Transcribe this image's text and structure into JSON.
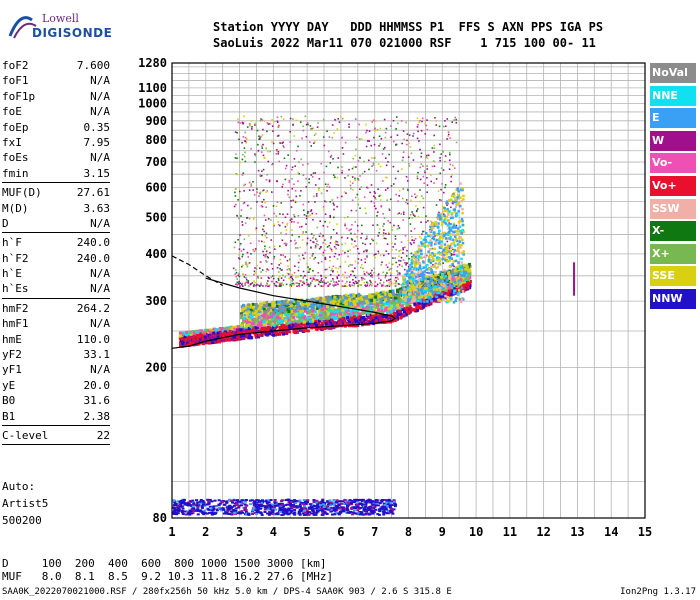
{
  "logo": {
    "line1": "Lowell",
    "line2": "DIGISONDE"
  },
  "header": {
    "line1": "Station YYYY DAY   DDD HHMMSS P1  FFS S AXN PPS IGA PS",
    "line2": "SaoLuis 2022 Mar11 070 021000 RSF    1 715 100 00- 11"
  },
  "params": [
    {
      "k": "foF2",
      "v": "7.600"
    },
    {
      "k": "foF1",
      "v": "N/A"
    },
    {
      "k": "foF1p",
      "v": "N/A"
    },
    {
      "k": "foE",
      "v": "N/A"
    },
    {
      "k": "foEp",
      "v": "0.35"
    },
    {
      "k": "fxI",
      "v": "7.95"
    },
    {
      "k": "foEs",
      "v": "N/A"
    },
    {
      "k": "fmin",
      "v": "3.15"
    },
    {
      "sep": true
    },
    {
      "k": "MUF(D)",
      "v": "27.61"
    },
    {
      "k": "M(D)",
      "v": "3.63"
    },
    {
      "k": "D",
      "v": "N/A"
    },
    {
      "sep": true
    },
    {
      "k": "h`F",
      "v": "240.0"
    },
    {
      "k": "h`F2",
      "v": "240.0"
    },
    {
      "k": "h`E",
      "v": "N/A"
    },
    {
      "k": "h`Es",
      "v": "N/A"
    },
    {
      "sep": true
    },
    {
      "k": "hmF2",
      "v": "264.2"
    },
    {
      "k": "hmF1",
      "v": "N/A"
    },
    {
      "k": "hmE",
      "v": "110.0"
    },
    {
      "k": "yF2",
      "v": "33.1"
    },
    {
      "k": "yF1",
      "v": "N/A"
    },
    {
      "k": "yE",
      "v": "20.0"
    },
    {
      "k": "B0",
      "v": "31.6"
    },
    {
      "k": "B1",
      "v": "2.38"
    },
    {
      "sep": true
    },
    {
      "k": "C-level",
      "v": "22"
    },
    {
      "sep": true
    }
  ],
  "auto": {
    "l1": "Auto:",
    "l2": "Artist5",
    "l3": "500200"
  },
  "legend": [
    {
      "label": "NoVal",
      "color": "#8c8c8c"
    },
    {
      "label": "NNE",
      "color": "#10e0f0"
    },
    {
      "label": "E",
      "color": "#3aa0f5"
    },
    {
      "label": "W",
      "color": "#a0108c"
    },
    {
      "label": "Vo-",
      "color": "#f050b4"
    },
    {
      "label": "Vo+",
      "color": "#e8102c"
    },
    {
      "label": "SSW",
      "color": "#f0b0a8"
    },
    {
      "label": "X-",
      "color": "#107810"
    },
    {
      "label": "X+",
      "color": "#78b850"
    },
    {
      "label": "SSE",
      "color": "#d8d010"
    },
    {
      "label": "NNW",
      "color": "#2010c8"
    }
  ],
  "muf_table": {
    "line1": "D     100  200  400  600  800 1000 1500 3000 [km]",
    "line2": "MUF   8.0  8.1  8.5  9.2 10.3 11.8 16.2 27.6 [MHz]"
  },
  "footer": "SAA0K_2022070021000.RSF / 280fx256h 50 kHz 5.0 km / DPS-4 SAA0K 903 / 2.6 S 315.8 E",
  "version": "Ion2Png 1.3.17",
  "chart_data": {
    "type": "scatter",
    "xlim": [
      1,
      15
    ],
    "x_ticks": [
      1,
      2,
      3,
      4,
      5,
      6,
      7,
      8,
      9,
      10,
      11,
      12,
      13,
      14,
      15
    ],
    "y_scale": "log",
    "ylim": [
      80,
      1280
    ],
    "y_ticks": [
      80,
      200,
      300,
      400,
      500,
      600,
      700,
      800,
      900,
      1000,
      1100,
      1280
    ],
    "grid": true,
    "trace_curve": {
      "x": [
        1.0,
        1.5,
        2.0,
        3.0,
        4.0,
        5.0,
        6.0,
        7.0,
        7.5,
        7.6,
        7.5,
        7.0,
        6.0,
        5.0,
        4.0,
        3.0,
        2.0
      ],
      "y": [
        225,
        228,
        235,
        245,
        250,
        255,
        258,
        262,
        266,
        270,
        274,
        280,
        290,
        300,
        310,
        325,
        345
      ]
    },
    "dashed_curve": {
      "x": [
        1.0,
        1.5,
        2.0,
        2.5
      ],
      "y": [
        395,
        375,
        350,
        330
      ]
    },
    "echo_regions": [
      {
        "x": [
          1.0,
          7.6
        ],
        "y": [
          80,
          90
        ],
        "note": "E-region echoes"
      },
      {
        "x": [
          1.0,
          9.8
        ],
        "y": [
          225,
          330
        ],
        "note": "F-region o/x traces"
      },
      {
        "x": [
          2.8,
          9.5
        ],
        "y": [
          330,
          950
        ],
        "note": "spread-F echoes"
      }
    ],
    "isolated_echo": {
      "x": 12.9,
      "y": [
        310,
        380
      ]
    }
  }
}
